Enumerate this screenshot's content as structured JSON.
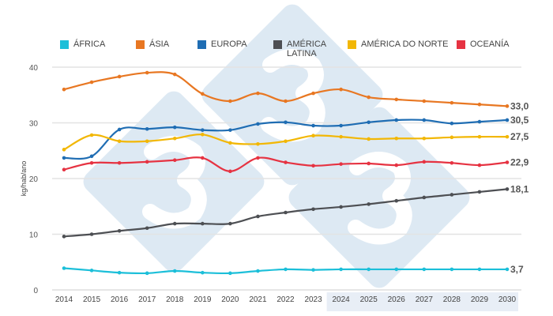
{
  "chart_data": {
    "type": "line",
    "title": "",
    "xlabel": "",
    "ylabel": "kg/hab/ano",
    "ylim": [
      0,
      40
    ],
    "yticks": [
      0,
      10,
      20,
      30,
      40
    ],
    "grid": true,
    "legend_position": "top",
    "projection_shaded_from": "2024",
    "categories": [
      "2014",
      "2015",
      "2016",
      "2017",
      "2018",
      "2019",
      "2020",
      "2021",
      "2022",
      "2023",
      "2024",
      "2025",
      "2026",
      "2027",
      "2028",
      "2029",
      "2030"
    ],
    "series": [
      {
        "name": "ÁFRICA",
        "color": "#1cbfd9",
        "end_label": "3,7",
        "values": [
          3.9,
          3.5,
          3.1,
          3.0,
          3.4,
          3.1,
          3.0,
          3.4,
          3.7,
          3.6,
          3.7,
          3.7,
          3.7,
          3.7,
          3.7,
          3.7,
          3.7
        ]
      },
      {
        "name": "ÁSIA",
        "color": "#e87722",
        "end_label": "33,0",
        "values": [
          36.0,
          37.3,
          38.3,
          39.0,
          38.7,
          35.2,
          33.9,
          35.3,
          33.9,
          35.3,
          36.0,
          34.6,
          34.2,
          33.9,
          33.6,
          33.3,
          33.0
        ]
      },
      {
        "name": "EUROPA",
        "color": "#1f6db3",
        "end_label": "30,5",
        "values": [
          23.7,
          24.0,
          28.8,
          28.9,
          29.2,
          28.7,
          28.7,
          29.8,
          30.1,
          29.5,
          29.5,
          30.1,
          30.5,
          30.5,
          29.9,
          30.2,
          30.5
        ]
      },
      {
        "name": "AMÉRICA LATINA",
        "color": "#4d4f53",
        "end_label": "18,1",
        "values": [
          9.6,
          10.0,
          10.6,
          11.1,
          11.9,
          11.9,
          11.9,
          13.2,
          13.9,
          14.5,
          14.9,
          15.4,
          16.0,
          16.6,
          17.1,
          17.6,
          18.1
        ]
      },
      {
        "name": "AMÉRICA DO NORTE",
        "color": "#f2b705",
        "end_label": "27,5",
        "values": [
          25.2,
          27.8,
          26.7,
          26.7,
          27.2,
          27.9,
          26.4,
          26.2,
          26.7,
          27.7,
          27.5,
          27.1,
          27.2,
          27.2,
          27.4,
          27.5,
          27.5
        ]
      },
      {
        "name": "OCEANÍA",
        "color": "#e63342",
        "end_label": "22,9",
        "values": [
          21.6,
          22.8,
          22.8,
          23.0,
          23.3,
          23.7,
          21.3,
          23.7,
          22.9,
          22.3,
          22.6,
          22.7,
          22.4,
          23.0,
          22.8,
          22.4,
          22.9
        ]
      }
    ]
  }
}
